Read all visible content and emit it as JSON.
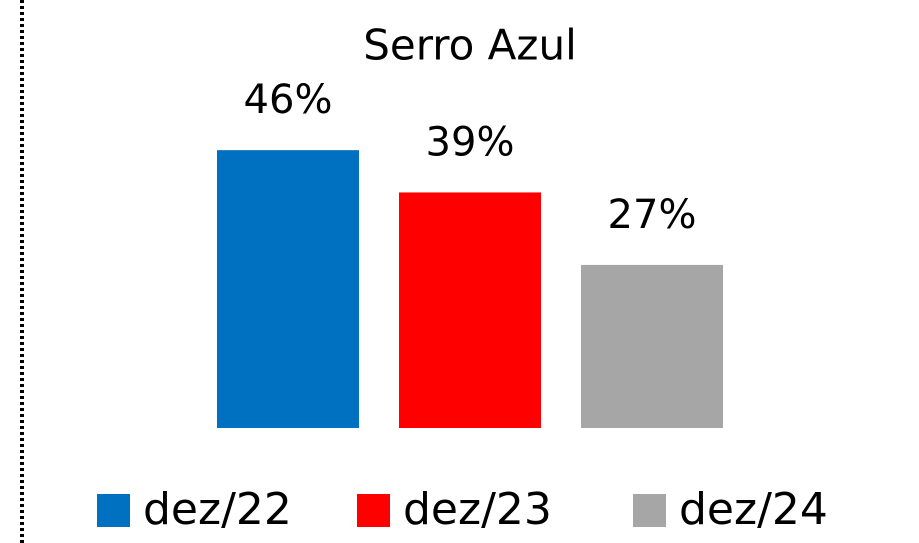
{
  "chart_data": {
    "type": "bar",
    "title": "Serro Azul",
    "series": [
      {
        "name": "dez/22",
        "color": "#0070c0",
        "values": [
          46
        ],
        "value_labels": [
          "46%"
        ]
      },
      {
        "name": "dez/23",
        "color": "#ff0000",
        "values": [
          39
        ],
        "value_labels": [
          "39%"
        ]
      },
      {
        "name": "dez/24",
        "color": "#a6a6a6",
        "values": [
          27
        ],
        "value_labels": [
          "27%"
        ]
      }
    ]
  }
}
